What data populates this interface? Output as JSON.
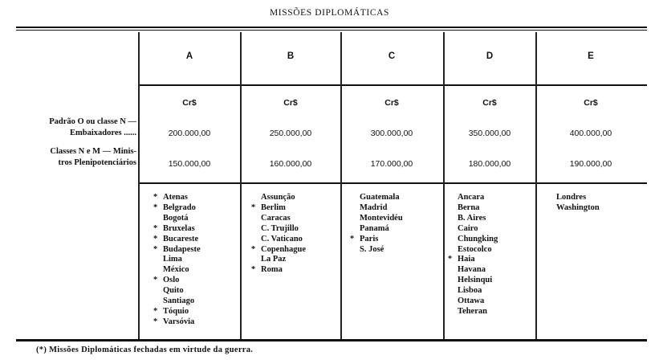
{
  "title": "MISSÕES DIPLOMÁTICAS",
  "columns": [
    {
      "letter": "A",
      "currency": "Cr$",
      "embaixadores": "200.000,00",
      "ministros": "150.000,00",
      "posts": [
        {
          "name": "Atenas",
          "closed": true
        },
        {
          "name": "Belgrado",
          "closed": true
        },
        {
          "name": "Bogotá",
          "closed": false
        },
        {
          "name": "Bruxelas",
          "closed": true
        },
        {
          "name": "Bucareste",
          "closed": true
        },
        {
          "name": "Budapeste",
          "closed": true
        },
        {
          "name": "Lima",
          "closed": false
        },
        {
          "name": "México",
          "closed": false
        },
        {
          "name": "Oslo",
          "closed": true
        },
        {
          "name": "Quito",
          "closed": false
        },
        {
          "name": "Santiago",
          "closed": false
        },
        {
          "name": "Tóquio",
          "closed": true
        },
        {
          "name": "Varsóvia",
          "closed": true
        }
      ]
    },
    {
      "letter": "B",
      "currency": "Cr$",
      "embaixadores": "250.000,00",
      "ministros": "160.000,00",
      "posts": [
        {
          "name": "Assunção",
          "closed": false
        },
        {
          "name": "Berlim",
          "closed": true
        },
        {
          "name": "Caracas",
          "closed": false
        },
        {
          "name": "C. Trujillo",
          "closed": false
        },
        {
          "name": "C. Vaticano",
          "closed": false
        },
        {
          "name": "Copenhague",
          "closed": true
        },
        {
          "name": "La Paz",
          "closed": false
        },
        {
          "name": "Roma",
          "closed": true
        }
      ]
    },
    {
      "letter": "C",
      "currency": "Cr$",
      "embaixadores": "300.000,00",
      "ministros": "170.000,00",
      "posts": [
        {
          "name": "Guatemala",
          "closed": false
        },
        {
          "name": "Madrid",
          "closed": false
        },
        {
          "name": "Montevidéu",
          "closed": false
        },
        {
          "name": "Panamá",
          "closed": false
        },
        {
          "name": "Paris",
          "closed": true
        },
        {
          "name": "S. José",
          "closed": false
        }
      ]
    },
    {
      "letter": "D",
      "currency": "Cr$",
      "embaixadores": "350.000,00",
      "ministros": "180.000,00",
      "posts": [
        {
          "name": "Ancara",
          "closed": false
        },
        {
          "name": "Berna",
          "closed": false
        },
        {
          "name": "B. Aires",
          "closed": false
        },
        {
          "name": "Cairo",
          "closed": false
        },
        {
          "name": "Chungking",
          "closed": false
        },
        {
          "name": "Estocolco",
          "closed": false
        },
        {
          "name": "Haia",
          "closed": true
        },
        {
          "name": "Havana",
          "closed": false
        },
        {
          "name": "Helsinqui",
          "closed": false
        },
        {
          "name": "Lisboa",
          "closed": false
        },
        {
          "name": "Ottawa",
          "closed": false
        },
        {
          "name": "Teheran",
          "closed": false
        }
      ]
    },
    {
      "letter": "E",
      "currency": "Cr$",
      "embaixadores": "400.000,00",
      "ministros": "190.000,00",
      "posts": [
        {
          "name": "Londres",
          "closed": false
        },
        {
          "name": "Washington",
          "closed": false
        }
      ]
    }
  ],
  "row_labels": {
    "embaixadores_line1": "Padrão O ou classe N —",
    "embaixadores_line2": "Embaixadores ......",
    "ministros_line1": "Classes N e M — Minis-",
    "ministros_line2": "tros Plenipotenciários"
  },
  "closed_marker": "*",
  "footnote": "(*) Missões Diplomáticas fechadas em virtude da guerra."
}
